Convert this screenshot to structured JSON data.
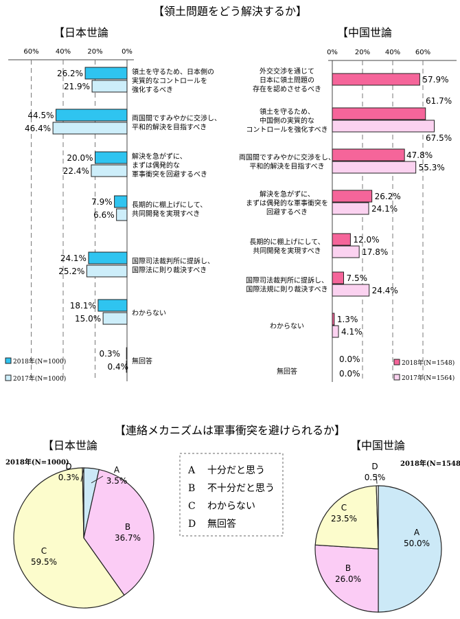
{
  "title_top": "【領土問題をどう解決するか】",
  "title_bottom": "【連絡メカニズムは軍事衝突を避けられるか】",
  "charts": {
    "jp_bar": {
      "heading": "【日本世論",
      "ticks": [
        "60%",
        "40%",
        "20%",
        "0%"
      ],
      "legend": [
        "2018年(N=1000)",
        "2017年(N=1000)"
      ]
    },
    "cn_bar": {
      "heading": "【中国世論",
      "ticks": [
        "0%",
        "20%",
        "40%",
        "60%"
      ],
      "legend": [
        "2018年(N=1548)",
        "2017年(N=1564)"
      ]
    },
    "jp_pie": {
      "heading": "【日本世論",
      "sample": "2018年(N=1000)"
    },
    "cn_pie": {
      "heading": "【中国世論",
      "sample": "2018年(N=1548)"
    }
  },
  "pie_legend": [
    {
      "key": "A",
      "label": "十分だと思う"
    },
    {
      "key": "B",
      "label": "不十分だと思う"
    },
    {
      "key": "C",
      "label": "わからない"
    },
    {
      "key": "D",
      "label": "無回答"
    }
  ],
  "colors": {
    "jp2018": "#2fc4f0",
    "jp2017": "#cdeefa",
    "cn2018": "#f5659a",
    "cn2017": "#fbd2f0",
    "pieA": "#cce9f7",
    "pieB": "#fbccf5",
    "pieC": "#fcfccc",
    "pieD": "#ffffff"
  },
  "chart_data": [
    {
      "type": "bar",
      "orientation": "horizontal",
      "title": "日本世論",
      "categories": [
        "領土を守るため、日本側の実質的なコントロールを強化するべき",
        "両国間ですみやかに交渉し、平和的解決を目指すべき",
        "解決を急がずに、まずは偶発的な軍事衝突を回避するべき",
        "長期的に棚上げにして、共同開発を実現すべき",
        "国際司法裁判所に提訴し、国際法に則り裁決すべき",
        "わからない",
        "無回答"
      ],
      "category_lines": [
        [
          "領土を守るため、日本側の",
          "実質的なコントロールを",
          "強化するべき"
        ],
        [
          "両国間ですみやかに交渉し、",
          "平和的解決を目指すべき"
        ],
        [
          "解決を急がずに、",
          "まずは偶発的な",
          "軍事衝突を回避するべき"
        ],
        [
          "長期的に棚上げにして、",
          "共同開発を実現すべき"
        ],
        [
          "国際司法裁判所に提訴し、",
          "国際法に則り裁決すべき"
        ],
        [
          "わからない"
        ],
        [
          "無回答"
        ]
      ],
      "series": [
        {
          "name": "2018年(N=1000)",
          "values": [
            26.2,
            44.5,
            20.0,
            7.9,
            24.1,
            18.1,
            0.3
          ],
          "labels": [
            "26.2%",
            "44.5%",
            "20.0%",
            "7.9%",
            "24.1%",
            "18.1%",
            "0.3%"
          ]
        },
        {
          "name": "2017年(N=1000)",
          "values": [
            21.9,
            46.4,
            22.4,
            6.6,
            25.2,
            15.0,
            0.4
          ],
          "labels": [
            "21.9%",
            "46.4%",
            "22.4%",
            "6.6%",
            "25.2%",
            "15.0%",
            "0.4%"
          ]
        }
      ],
      "xlim": [
        0,
        60
      ]
    },
    {
      "type": "bar",
      "orientation": "horizontal",
      "title": "中国世論",
      "categories": [
        "外交交渉を通じて日本に領土問題の存在を認めさせるべき",
        "領土を守るため、中国側の実質的なコントロールを強化すべき",
        "両国間ですみやかに交渉をし、平和的解決を目指すべき",
        "解決を急がずに、まずは偶発的な軍事衝突を回避するべき",
        "長期的に棚上げにして、共同開発を実現すべき",
        "国際司法裁判所に提訴し、国際法規に則り裁決すべき",
        "わからない",
        "無回答"
      ],
      "category_lines": [
        [
          "外交交渉を通じて",
          "日本に領土問題の",
          "存在を認めさせるべき"
        ],
        [
          "領土を守るため、",
          "中国側の実質的な",
          "コントロールを強化すべき"
        ],
        [
          "両国間ですみやかに交渉をし、",
          "平和的解決を目指すべき"
        ],
        [
          "解決を急がずに、",
          "まずは偶発的な軍事衝突を",
          "回避するべき"
        ],
        [
          "長期的に棚上げにして、",
          "共同開発を実現すべき"
        ],
        [
          "国際司法裁判所に提訴し、",
          "国際法規に則り裁決すべき"
        ],
        [
          "わからない"
        ],
        [
          "無回答"
        ]
      ],
      "series": [
        {
          "name": "2018年(N=1548)",
          "values": [
            57.9,
            61.7,
            47.8,
            26.2,
            12.0,
            7.5,
            1.3,
            0.0
          ],
          "labels": [
            "57.9%",
            "61.7%",
            "47.8%",
            "26.2%",
            "12.0%",
            "7.5%",
            "1.3%",
            "0.0%"
          ]
        },
        {
          "name": "2017年(N=1564)",
          "values": [
            null,
            67.5,
            55.3,
            24.1,
            17.8,
            24.4,
            4.1,
            0.0
          ],
          "labels": [
            "",
            "67.5%",
            "55.3%",
            "24.1%",
            "17.8%",
            "24.4%",
            "4.1%",
            "0.0%"
          ]
        }
      ],
      "xlim": [
        0,
        70
      ]
    },
    {
      "type": "pie",
      "title": "日本世論",
      "categories": [
        "A",
        "B",
        "C",
        "D"
      ],
      "values": [
        3.5,
        36.7,
        59.5,
        0.3
      ],
      "labels": [
        "3.5%",
        "36.7%",
        "59.5%",
        "0.3%"
      ]
    },
    {
      "type": "pie",
      "title": "中国世論",
      "categories": [
        "A",
        "B",
        "C",
        "D"
      ],
      "values": [
        50.0,
        26.0,
        23.5,
        0.5
      ],
      "labels": [
        "50.0%",
        "26.0%",
        "23.5%",
        "0.5%"
      ]
    }
  ]
}
